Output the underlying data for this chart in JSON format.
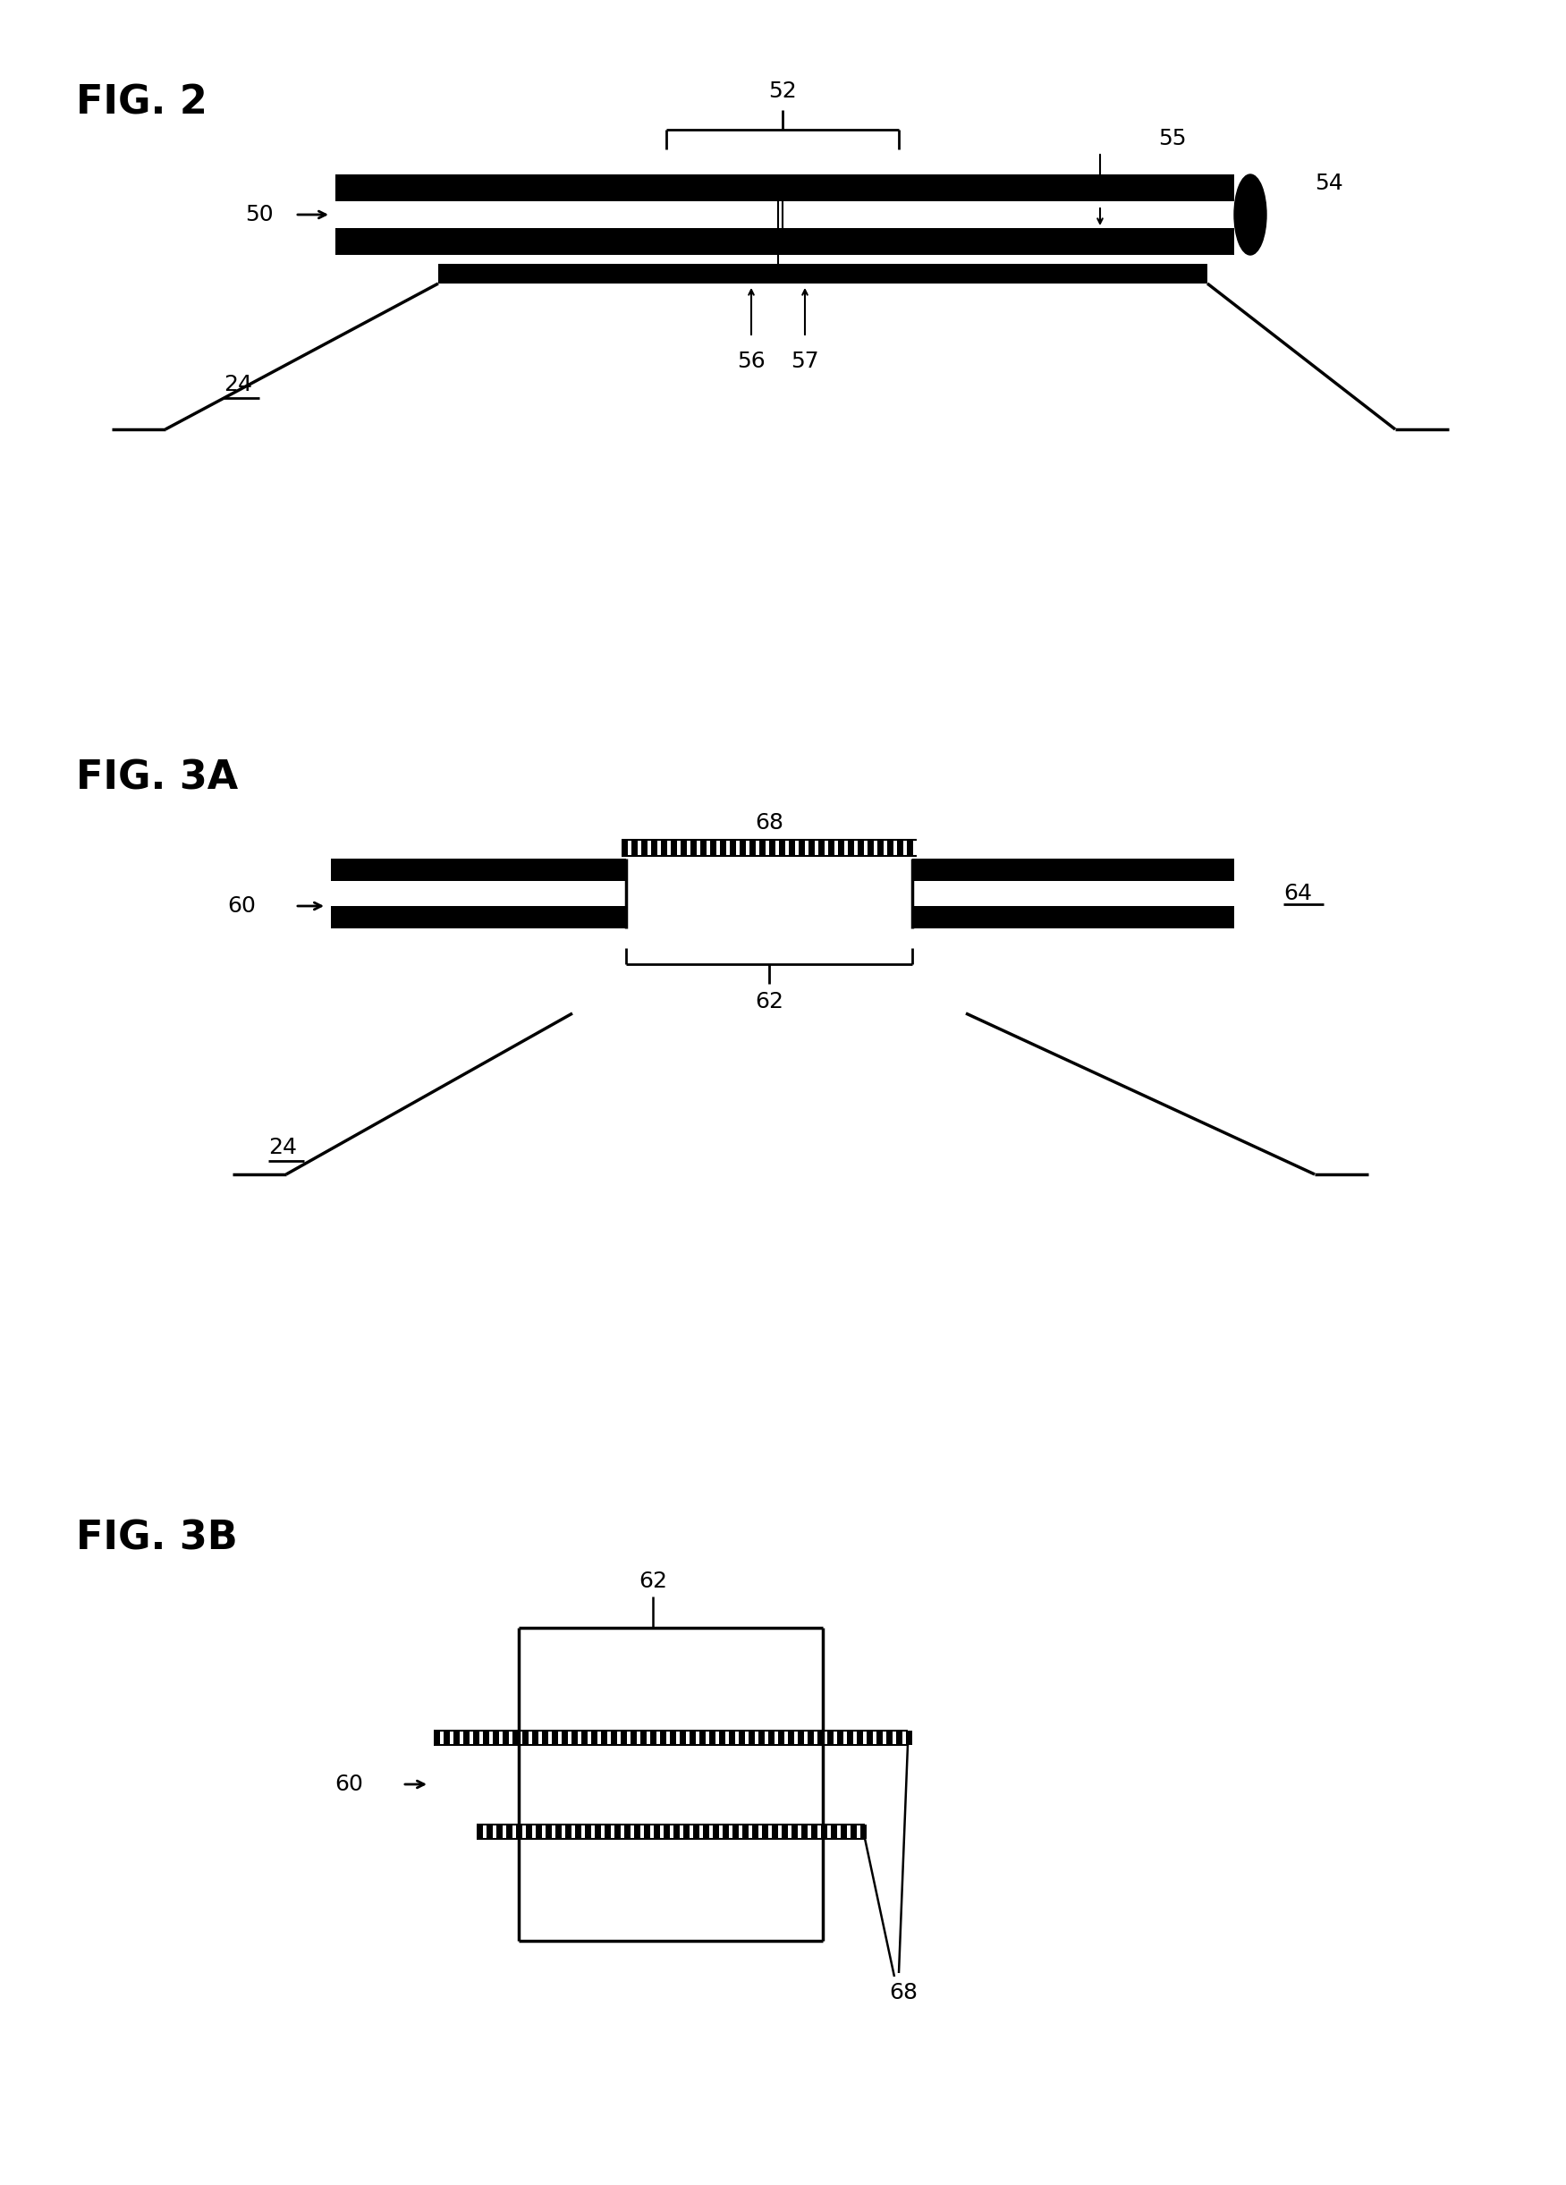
{
  "fig2_title": "FIG. 2",
  "fig3a_title": "FIG. 3A",
  "fig3b_title": "FIG. 3B",
  "bg_color": "#ffffff",
  "line_color": "#000000"
}
